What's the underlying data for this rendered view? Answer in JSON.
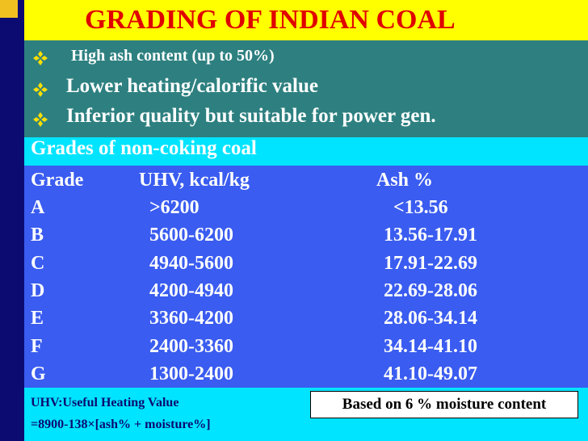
{
  "header": {
    "title": "GRADING OF INDIAN COAL"
  },
  "bullets": [
    "High ash content (up to 50%)",
    "Lower heating/calorific value",
    "Inferior quality but suitable for power gen."
  ],
  "subheading": "Grades of non-coking coal",
  "table": {
    "header": [
      "Grade",
      "UHV, kcal/kg",
      "Ash %"
    ],
    "rows": [
      [
        "A",
        ">6200",
        "<13.56"
      ],
      [
        "B",
        "5600-6200",
        "13.56-17.91"
      ],
      [
        "C",
        "4940-5600",
        "17.91-22.69"
      ],
      [
        "D",
        "4200-4940",
        "22.69-28.06"
      ],
      [
        "E",
        "3360-4200",
        "28.06-34.14"
      ],
      [
        "F",
        "2400-3360",
        "34.14-41.10"
      ],
      [
        "G",
        "1300-2400",
        "41.10-49.07"
      ]
    ]
  },
  "footer": {
    "notes": [
      "UHV:Useful Heating Value",
      "=8900-138×[ash% + moisture%]"
    ],
    "box": "Based on 6 % moisture content"
  }
}
